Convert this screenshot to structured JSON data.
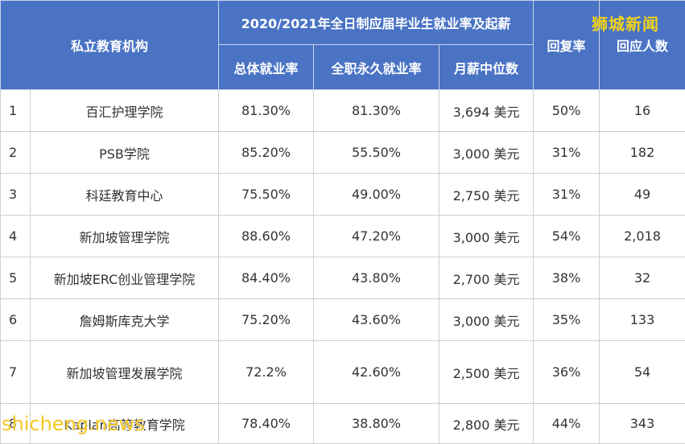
{
  "header": {
    "institution": "私立教育机构",
    "group_title": "2020/2021年全日制应届毕业生就业率及起薪",
    "overall_employment": "总体就业率",
    "fulltime_permanent": "全职永久就业率",
    "median_salary": "月薪中位数",
    "response_rate": "回复率",
    "respondents": "回应人数"
  },
  "rows": [
    {
      "idx": "1",
      "name": "百汇护理学院",
      "overall": "81.30%",
      "fulltime": "81.30%",
      "salary": "3,694 美元",
      "rate": "50%",
      "count": "16"
    },
    {
      "idx": "2",
      "name": "PSB学院",
      "overall": "85.20%",
      "fulltime": "55.50%",
      "salary": "3,000 美元",
      "rate": "31%",
      "count": "182"
    },
    {
      "idx": "3",
      "name": "科廷教育中心",
      "overall": "75.50%",
      "fulltime": "49.00%",
      "salary": "2,750 美元",
      "rate": "31%",
      "count": "49"
    },
    {
      "idx": "4",
      "name": "新加坡管理学院",
      "overall": "88.60%",
      "fulltime": "47.20%",
      "salary": "3,000 美元",
      "rate": "54%",
      "count": "2,018"
    },
    {
      "idx": "5",
      "name": "新加坡ERC创业管理学院",
      "overall": "84.40%",
      "fulltime": "43.80%",
      "salary": "2,700 美元",
      "rate": "38%",
      "count": "32"
    },
    {
      "idx": "6",
      "name": "詹姆斯库克大学",
      "overall": "75.20%",
      "fulltime": "43.60%",
      "salary": "3,000 美元",
      "rate": "35%",
      "count": "133"
    },
    {
      "idx": "7",
      "name": "新加坡管理发展学院",
      "overall": "72.2%",
      "fulltime": "42.60%",
      "salary": "2,500 美元",
      "rate": "36%",
      "count": "54"
    },
    {
      "idx": "8",
      "name": "Kaplan高等教育学院",
      "overall": "78.40%",
      "fulltime": "38.80%",
      "salary": "2,800 美元",
      "rate": "44%",
      "count": "343"
    }
  ],
  "brand": "狮城新闻",
  "watermark": "shicheng.news",
  "colors": {
    "header_bg": "#4a73c4",
    "brand_yellow": "#f1d21c"
  }
}
